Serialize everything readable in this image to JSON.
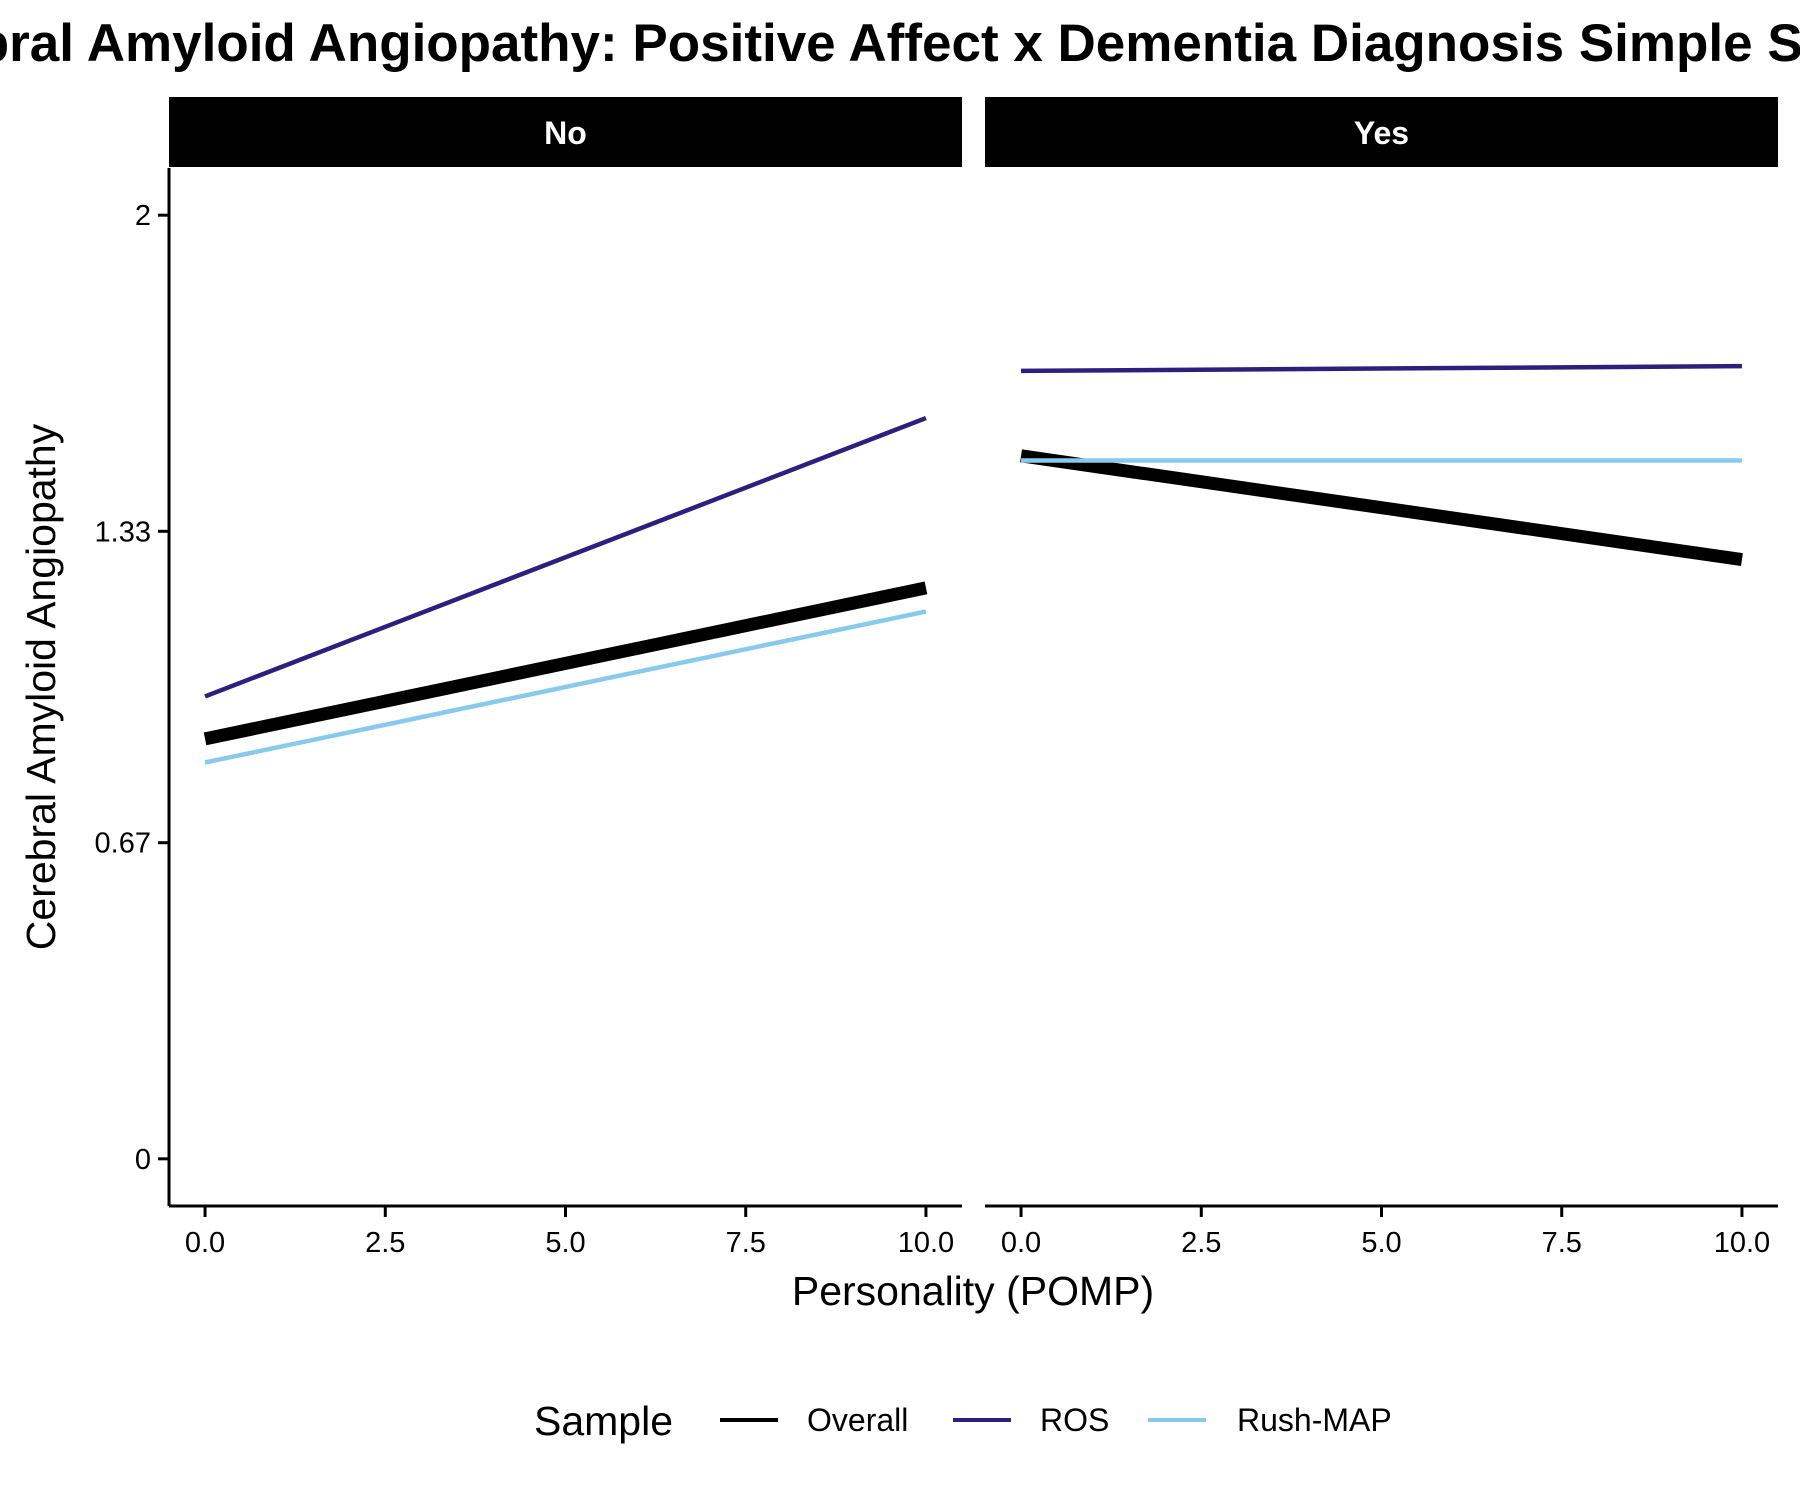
{
  "chart_data": {
    "type": "line",
    "title": "Cerebral Amyloid Angiopathy: Positive Affect x Dementia Diagnosis Simple Slopes",
    "xlabel": "Personality (POMP)",
    "ylabel": "Cerebral Amyloid Angiopathy",
    "xlim": [
      -0.5,
      10.5
    ],
    "ylim": [
      -0.1,
      2.1
    ],
    "x_ticks": [
      0,
      2.5,
      5,
      7.5,
      10
    ],
    "x_tick_labels": [
      "0.0",
      "2.5",
      "5.0",
      "7.5",
      "10.0"
    ],
    "y_ticks": [
      0,
      0.67,
      1.33,
      2
    ],
    "y_tick_labels": [
      "0",
      "0.67",
      "1.33",
      "2"
    ],
    "grid": false,
    "legend": {
      "title": "Sample",
      "position": "bottom",
      "entries": [
        "Overall",
        "ROS",
        "Rush-MAP"
      ]
    },
    "panels": [
      {
        "label": "No",
        "series": [
          {
            "name": "Overall",
            "color": "#000000",
            "x": [
              0,
              10
            ],
            "values": [
              0.89,
              1.21
            ]
          },
          {
            "name": "ROS",
            "color": "#2E1F7F",
            "x": [
              0,
              10
            ],
            "values": [
              0.98,
              1.57
            ]
          },
          {
            "name": "Rush-MAP",
            "color": "#87CAEC",
            "x": [
              0,
              10
            ],
            "values": [
              0.84,
              1.16
            ]
          }
        ]
      },
      {
        "label": "Yes",
        "series": [
          {
            "name": "Overall",
            "color": "#000000",
            "x": [
              0,
              10
            ],
            "values": [
              1.49,
              1.27
            ]
          },
          {
            "name": "ROS",
            "color": "#2E1F7F",
            "x": [
              0,
              10
            ],
            "values": [
              1.67,
              1.68
            ]
          },
          {
            "name": "Rush-MAP",
            "color": "#87CAEC",
            "x": [
              0,
              10
            ],
            "values": [
              1.48,
              1.48
            ]
          }
        ]
      }
    ]
  }
}
